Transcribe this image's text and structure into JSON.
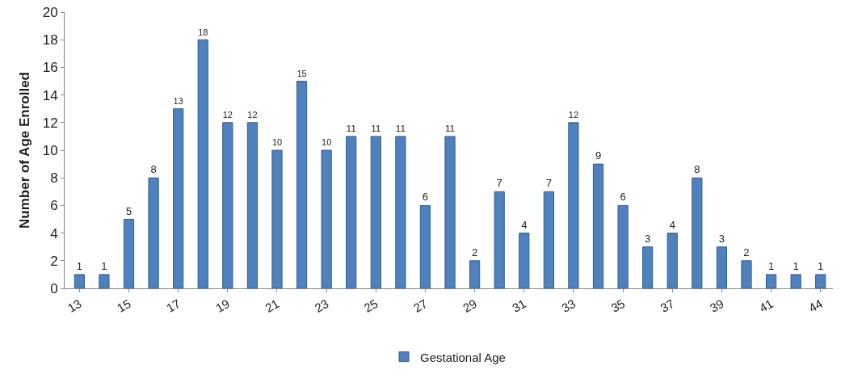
{
  "chart_data": {
    "type": "bar",
    "ylabel": "Number of Age Enrolled",
    "categories": [
      "13",
      null,
      "15",
      null,
      "17",
      null,
      "19",
      null,
      "21",
      null,
      "23",
      null,
      "25",
      null,
      "27",
      null,
      "29",
      null,
      "31",
      null,
      "33",
      null,
      "35",
      null,
      "37",
      null,
      "39",
      null,
      "41",
      null,
      "44"
    ],
    "series": [
      {
        "name": "Gestational Age",
        "color": "#4f81bd",
        "values": [
          1,
          1,
          5,
          8,
          13,
          18,
          12,
          12,
          10,
          15,
          10,
          11,
          11,
          11,
          6,
          11,
          2,
          7,
          4,
          7,
          12,
          9,
          6,
          3,
          4,
          8,
          3,
          2,
          1,
          1,
          1
        ]
      }
    ],
    "ylim": [
      0,
      20
    ],
    "yticks": [
      0,
      2,
      4,
      6,
      8,
      10,
      12,
      14,
      16,
      18,
      20
    ],
    "grid": false,
    "legend": "bottom",
    "data_labels": true
  }
}
